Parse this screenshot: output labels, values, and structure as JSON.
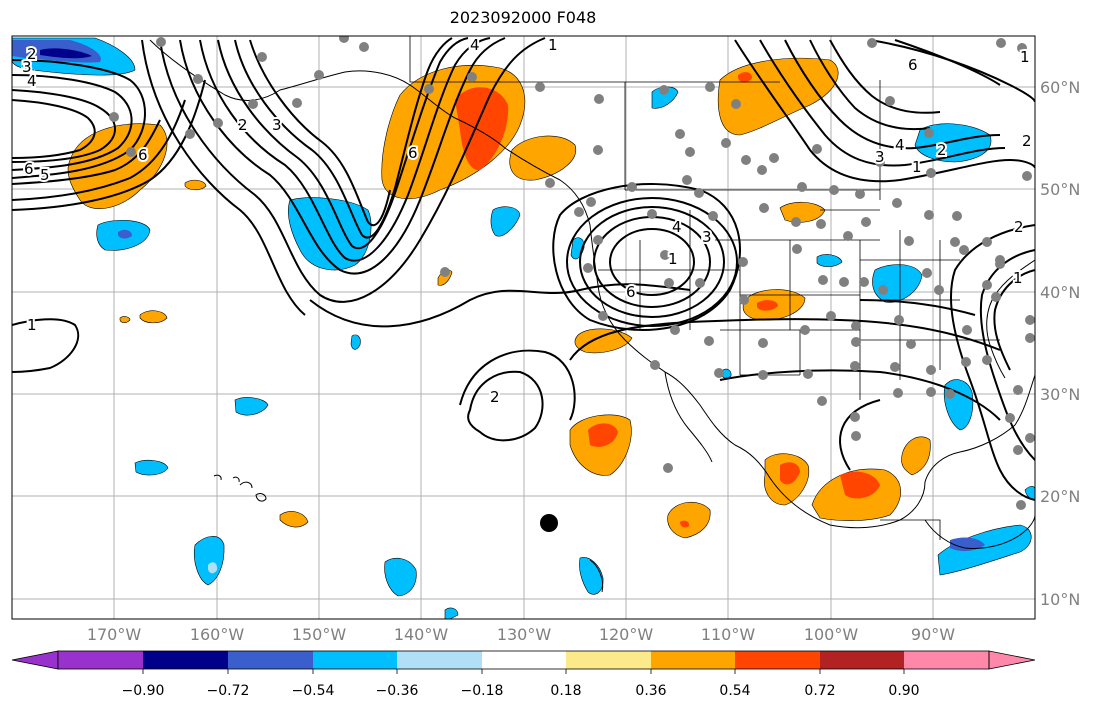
{
  "title": "2023092000 F048",
  "lat_labels": [
    "60°N",
    "50°N",
    "40°N",
    "30°N",
    "20°N",
    "10°N"
  ],
  "lon_labels": [
    "170°W",
    "160°W",
    "150°W",
    "140°W",
    "130°W",
    "120°W",
    "110°W",
    "100°W",
    "90°W"
  ],
  "colorbar": {
    "ticks": [
      "−0.90",
      "−0.72",
      "−0.54",
      "−0.36",
      "−0.18",
      "0.18",
      "0.36",
      "0.54",
      "0.72",
      "0.90"
    ],
    "colors": [
      "#9932cc",
      "#00008b",
      "#3a5fcd",
      "#00bfff",
      "#b0e0f8",
      "#ffffff",
      "#fce98a",
      "#ffa500",
      "#ff4500",
      "#b22222",
      "#ff88aa"
    ]
  },
  "contour_labels": [
    "2",
    "3",
    "4",
    "6",
    "5",
    "4",
    "1",
    "6",
    "3",
    "6",
    "4",
    "3",
    "2",
    "1",
    "6",
    "4",
    "3",
    "2",
    "1",
    "2",
    "6",
    "2",
    "1",
    "1",
    "1",
    "2"
  ]
}
